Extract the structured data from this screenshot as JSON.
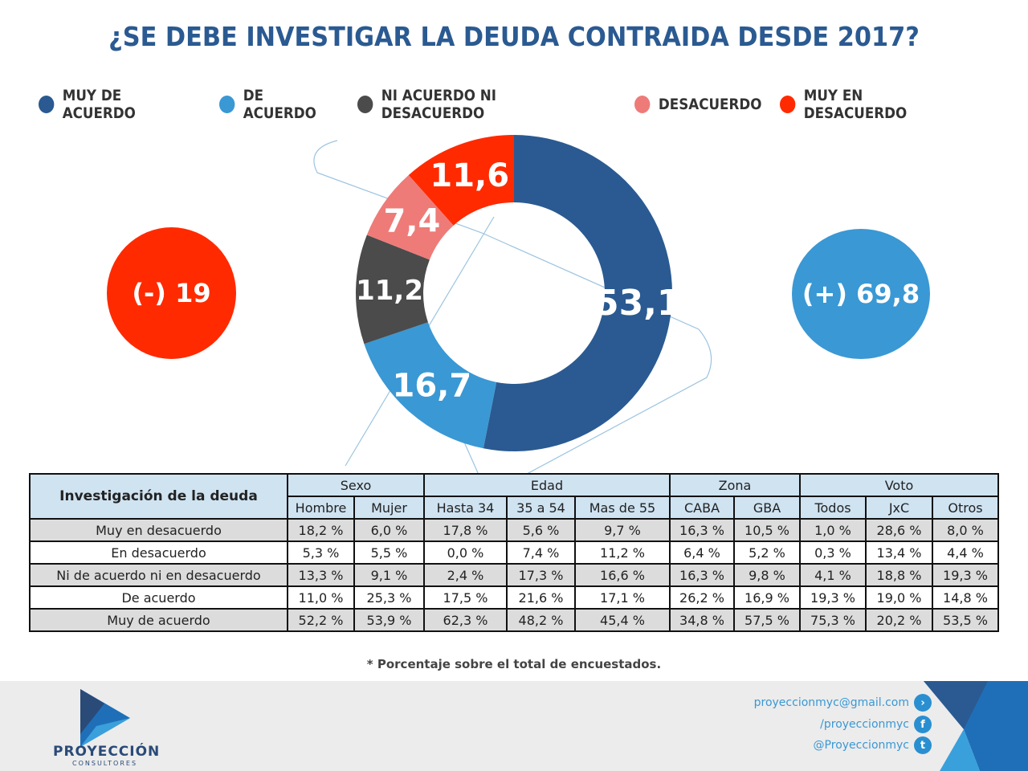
{
  "title": "¿SE DEBE INVESTIGAR LA DEUDA CONTRAIDA DESDE 2017?",
  "colors": {
    "muy_de_acuerdo": "#2a5a91",
    "de_acuerdo": "#3a98d4",
    "ni": "#4b4b4b",
    "desacuerdo": "#ee7b78",
    "muy_en_desacuerdo": "#ff2a00"
  },
  "legend": [
    "MUY DE ACUERDO",
    "DE ACUERDO",
    "NI ACUERDO NI DESACUERDO",
    "DESACUERDO",
    "MUY EN DESACUERDO"
  ],
  "chart_data": {
    "type": "pie",
    "donut": true,
    "categories": [
      "MUY DE ACUERDO",
      "DE ACUERDO",
      "NI ACUERDO NI DESACUERDO",
      "DESACUERDO",
      "MUY EN DESACUERDO"
    ],
    "values": [
      53.1,
      16.7,
      11.2,
      7.4,
      11.6
    ],
    "labels": [
      "53,1",
      "16,7",
      "11,2",
      "7,4",
      "11,6"
    ],
    "colors": [
      "#2a5a91",
      "#3a98d4",
      "#4b4b4b",
      "#ee7b78",
      "#ff2a00"
    ],
    "legend_position": "top"
  },
  "summary": {
    "negative": "(-) 19",
    "positive": "(+) 69,8"
  },
  "table": {
    "title": "Investigación de la deuda",
    "groups": [
      {
        "label": "Sexo",
        "span": 2
      },
      {
        "label": "Edad",
        "span": 3
      },
      {
        "label": "Zona",
        "span": 2
      },
      {
        "label": "Voto",
        "span": 3
      }
    ],
    "columns": [
      "Hombre",
      "Mujer",
      "Hasta 34",
      "35 a 54",
      "Mas de 55",
      "CABA",
      "GBA",
      "Todos",
      "JxC",
      "Otros"
    ],
    "rows": [
      {
        "label": "Muy en desacuerdo",
        "values": [
          "18,2 %",
          "6,0 %",
          "17,8 %",
          "5,6 %",
          "9,7 %",
          "16,3 %",
          "10,5 %",
          "1,0 %",
          "28,6 %",
          "8,0 %"
        ]
      },
      {
        "label": "En desacuerdo",
        "values": [
          "5,3 %",
          "5,5 %",
          "0,0 %",
          "7,4 %",
          "11,2 %",
          "6,4 %",
          "5,2 %",
          "0,3 %",
          "13,4 %",
          "4,4 %"
        ]
      },
      {
        "label": "Ni de acuerdo ni en desacuerdo",
        "values": [
          "13,3 %",
          "9,1 %",
          "2,4 %",
          "17,3 %",
          "16,6 %",
          "16,3 %",
          "9,8 %",
          "4,1 %",
          "18,8 %",
          "19,3 %"
        ]
      },
      {
        "label": "De acuerdo",
        "values": [
          "11,0 %",
          "25,3 %",
          "17,5 %",
          "21,6 %",
          "17,1 %",
          "26,2 %",
          "16,9 %",
          "19,3 %",
          "19,0 %",
          "14,8 %"
        ]
      },
      {
        "label": "Muy de acuerdo",
        "values": [
          "52,2 %",
          "53,9 %",
          "62,3 %",
          "48,2 %",
          "45,4 %",
          "34,8 %",
          "57,5 %",
          "75,3 %",
          "20,2 %",
          "53,5 %"
        ]
      }
    ]
  },
  "note": "* Porcentaje sobre el total de encuestados.",
  "footer": {
    "brand": "PROYECCIÓN",
    "brand_sub": "CONSULTORES",
    "email": "proyeccionmyc@gmail.com",
    "facebook": "/proyeccionmyc",
    "twitter": "@Proyeccionmyc"
  }
}
